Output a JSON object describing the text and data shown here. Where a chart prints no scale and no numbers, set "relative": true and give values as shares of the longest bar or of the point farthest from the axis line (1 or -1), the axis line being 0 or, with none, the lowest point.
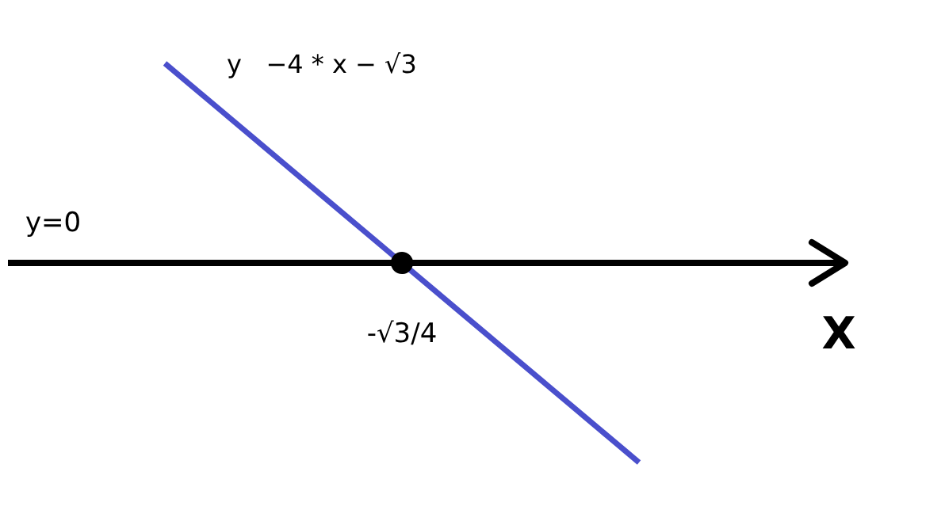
{
  "chart_data": {
    "type": "line",
    "title": "y   −4 * x − √3",
    "xlabel": "X",
    "relative": true,
    "categories": [
      null,
      null
    ],
    "series": [
      {
        "color": "#4a4fcc",
        "values": [
          1,
          -1
        ]
      }
    ],
    "ref_lines": [
      {
        "axis": "y",
        "value": 0,
        "label": "y=0",
        "color": "#000000"
      }
    ],
    "annotations": [
      "-√3/4"
    ],
    "marker": "none",
    "line_style": "solid"
  }
}
